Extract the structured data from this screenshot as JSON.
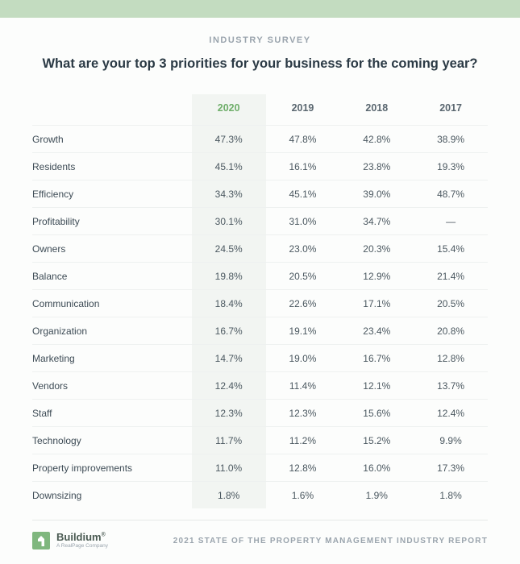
{
  "colors": {
    "top_bar": "#c3dcc0",
    "background": "#fcfdfc",
    "eyebrow_text": "#9aa4ad",
    "title_text": "#2b3a45",
    "body_text": "#4b5860",
    "row_border": "#eef1f0",
    "highlight_bg": "#f2f5f2",
    "highlight_text": "#6fae6a",
    "brand_green": "#7fb77e",
    "footer_border": "#e5e9e7"
  },
  "typography": {
    "eyebrow_size_pt": 11,
    "title_size_pt": 16.5,
    "cell_size_pt": 12,
    "footer_size_pt": 10
  },
  "eyebrow": "INDUSTRY SURVEY",
  "title": "What are your top 3 priorities for your business for the coming year?",
  "table": {
    "type": "table",
    "highlighted_column_index": 0,
    "columns": [
      "2020",
      "2019",
      "2018",
      "2017"
    ],
    "rows": [
      {
        "label": "Growth",
        "values": [
          "47.3%",
          "47.8%",
          "42.8%",
          "38.9%"
        ]
      },
      {
        "label": "Residents",
        "values": [
          "45.1%",
          "16.1%",
          "23.8%",
          "19.3%"
        ]
      },
      {
        "label": "Efficiency",
        "values": [
          "34.3%",
          "45.1%",
          "39.0%",
          "48.7%"
        ]
      },
      {
        "label": "Profitability",
        "values": [
          "30.1%",
          "31.0%",
          "34.7%",
          "—"
        ]
      },
      {
        "label": "Owners",
        "values": [
          "24.5%",
          "23.0%",
          "20.3%",
          "15.4%"
        ]
      },
      {
        "label": "Balance",
        "values": [
          "19.8%",
          "20.5%",
          "12.9%",
          "21.4%"
        ]
      },
      {
        "label": "Communication",
        "values": [
          "18.4%",
          "22.6%",
          "17.1%",
          "20.5%"
        ]
      },
      {
        "label": "Organization",
        "values": [
          "16.7%",
          "19.1%",
          "23.4%",
          "20.8%"
        ]
      },
      {
        "label": "Marketing",
        "values": [
          "14.7%",
          "19.0%",
          "16.7%",
          "12.8%"
        ]
      },
      {
        "label": "Vendors",
        "values": [
          "12.4%",
          "11.4%",
          "12.1%",
          "13.7%"
        ]
      },
      {
        "label": "Staff",
        "values": [
          "12.3%",
          "12.3%",
          "15.6%",
          "12.4%"
        ]
      },
      {
        "label": "Technology",
        "values": [
          "11.7%",
          "11.2%",
          "15.2%",
          "9.9%"
        ]
      },
      {
        "label": "Property improvements",
        "values": [
          "11.0%",
          "12.8%",
          "16.0%",
          "17.3%"
        ]
      },
      {
        "label": "Downsizing",
        "values": [
          "1.8%",
          "1.6%",
          "1.9%",
          "1.8%"
        ]
      }
    ]
  },
  "footer": {
    "brand_name": "Buildium",
    "brand_sub": "A RealPage Company",
    "report_title": "2021 STATE OF THE PROPERTY MANAGEMENT INDUSTRY REPORT"
  }
}
